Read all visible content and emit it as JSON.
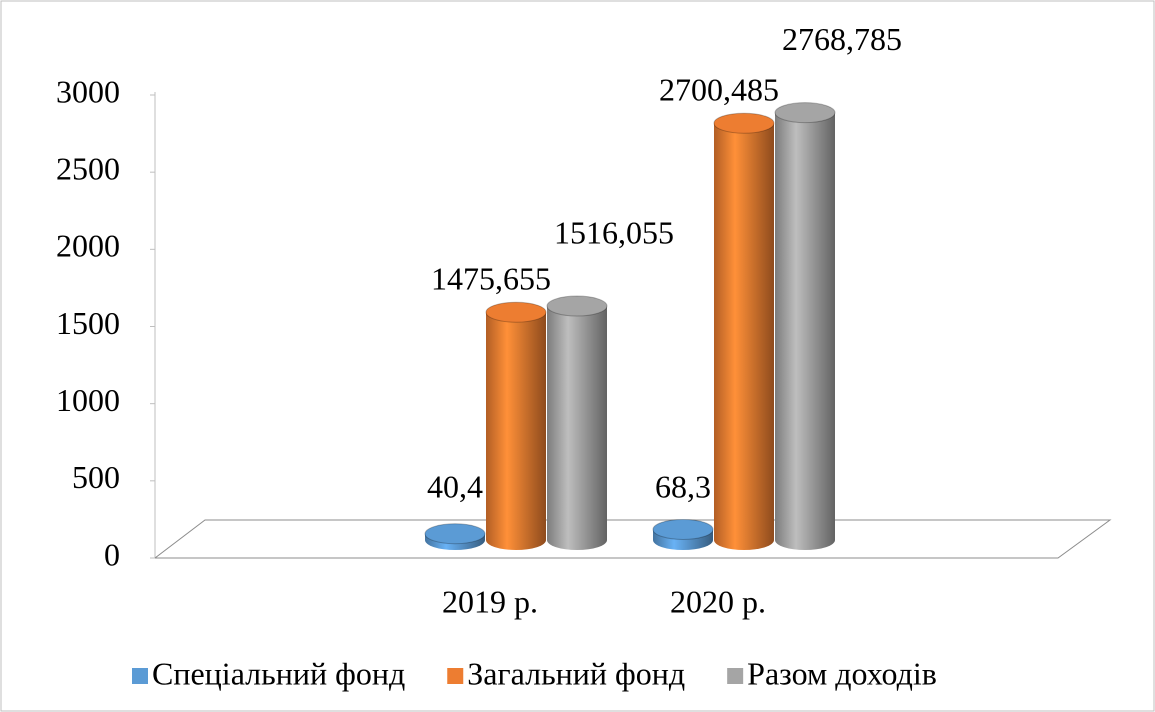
{
  "chart_data": {
    "type": "bar3d",
    "categories": [
      "2019 р.",
      "2020 р."
    ],
    "series": [
      {
        "name": "Спеціальний фонд",
        "color": "#5b9bd5",
        "values": [
          40.4,
          68.3
        ],
        "value_labels": [
          "40,4",
          "68,3"
        ]
      },
      {
        "name": "Загальний фонд",
        "color": "#ed7d31",
        "values": [
          1475.655,
          2700.485
        ],
        "value_labels": [
          "1475,655",
          "2700,485"
        ]
      },
      {
        "name": "Разом доходів",
        "color": "#a5a5a5",
        "values": [
          1516.055,
          2768.785
        ],
        "value_labels": [
          "1516,055",
          "2768,785"
        ]
      }
    ],
    "ylim": [
      0,
      3000
    ],
    "yticks": [
      0,
      500,
      1000,
      1500,
      2000,
      2500,
      3000
    ]
  }
}
